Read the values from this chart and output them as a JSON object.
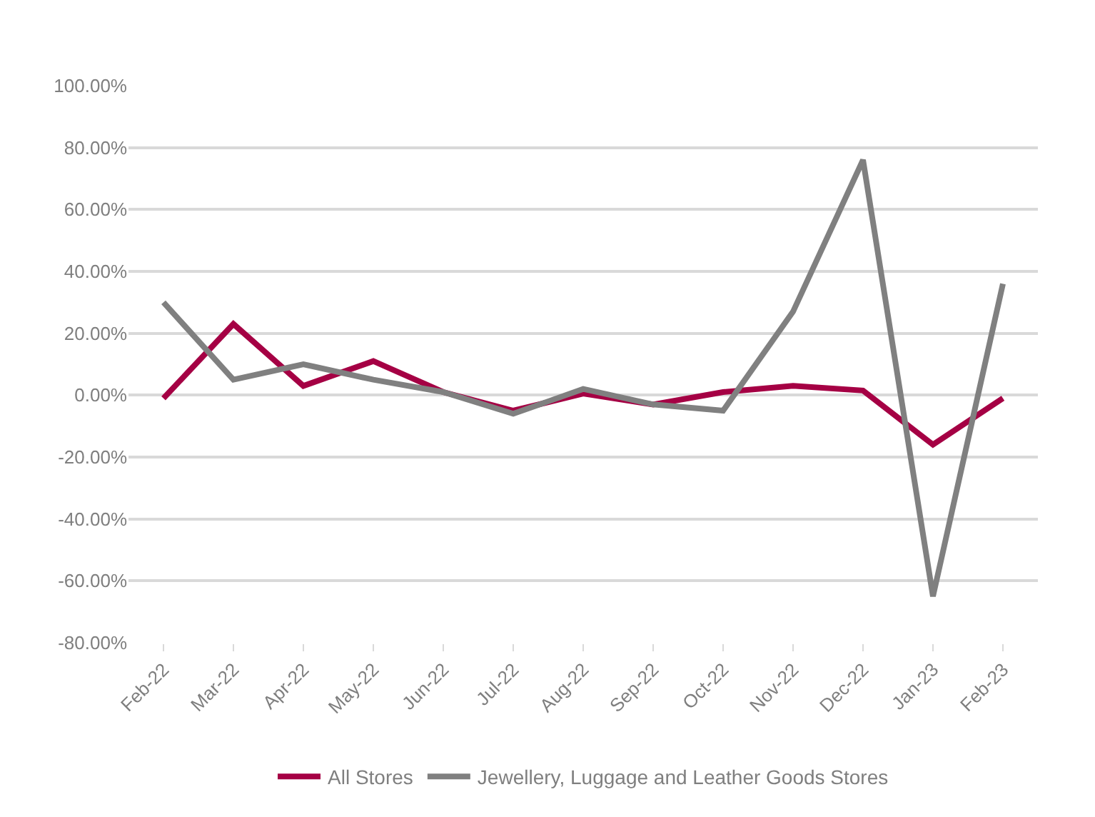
{
  "chart_data": {
    "type": "line",
    "categories": [
      "Feb-22",
      "Mar-22",
      "Apr-22",
      "May-22",
      "Jun-22",
      "Jul-22",
      "Aug-22",
      "Sep-22",
      "Oct-22",
      "Nov-22",
      "Dec-22",
      "Jan-23",
      "Feb-23"
    ],
    "series": [
      {
        "name": "All Stores",
        "color": "#a50044",
        "values": [
          -1,
          23,
          3,
          11,
          1,
          -5,
          0.5,
          -3,
          1,
          3,
          1.5,
          -16,
          -1
        ]
      },
      {
        "name": "Jewellery, Luggage and Leather Goods Stores",
        "color": "#808080",
        "values": [
          30,
          5,
          10,
          5,
          1,
          -6,
          2,
          -3,
          -5,
          27,
          76,
          -65,
          36
        ]
      }
    ],
    "ylim": [
      -80,
      100
    ],
    "yticks": [
      {
        "value": -80,
        "label": "-80.00%"
      },
      {
        "value": -60,
        "label": "-60.00%"
      },
      {
        "value": -40,
        "label": "-40.00%"
      },
      {
        "value": -20,
        "label": "-20.00%"
      },
      {
        "value": 0,
        "label": "0.00%"
      },
      {
        "value": 20,
        "label": "20.00%"
      },
      {
        "value": 40,
        "label": "40.00%"
      },
      {
        "value": 60,
        "label": "60.00%"
      },
      {
        "value": 80,
        "label": "80.00%"
      },
      {
        "value": 100,
        "label": "100.00%"
      }
    ],
    "grid": "y",
    "legend": "bottom",
    "marker": "none",
    "line_style": "solid"
  }
}
